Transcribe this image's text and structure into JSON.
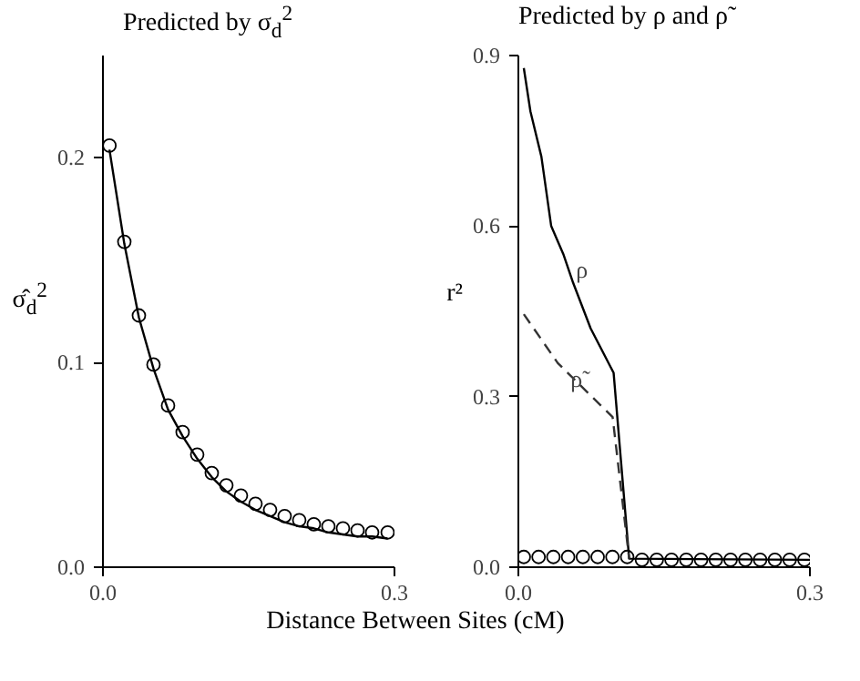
{
  "chart_data": [
    {
      "type": "line",
      "title": "Predicted by σ$_{d}$$^{2}$",
      "xlabel": "Distance Between Sites (cM)",
      "ylabel": "σ̂$_{d}$$^{2}$",
      "xlim": [
        0,
        0.3
      ],
      "ylim": [
        0,
        0.25
      ],
      "xticks": [
        {
          "value": 0,
          "label": "0.0"
        },
        0.3
      ],
      "yticks": [
        {
          "value": 0,
          "label": "0.0"
        },
        0.1,
        0.2
      ],
      "grid": false,
      "series": [
        {
          "color": "#000000",
          "line_style": "solid",
          "x": [
            0.0067,
            0.022,
            0.037,
            0.052,
            0.067,
            0.082,
            0.097,
            0.112,
            0.127,
            0.142,
            0.157,
            0.172,
            0.187,
            0.202,
            0.217,
            0.232,
            0.247,
            0.262,
            0.277,
            0.293
          ],
          "values": [
            0.204,
            0.158,
            0.122,
            0.097,
            0.077,
            0.064,
            0.053,
            0.044,
            0.037,
            0.032,
            0.028,
            0.025,
            0.022,
            0.02,
            0.019,
            0.017,
            0.016,
            0.015,
            0.015,
            0.014
          ]
        },
        {
          "type": "scatter",
          "color": "#000000",
          "marker": "circle",
          "x": [
            0.0067,
            0.022,
            0.037,
            0.052,
            0.067,
            0.082,
            0.097,
            0.112,
            0.127,
            0.142,
            0.157,
            0.172,
            0.187,
            0.202,
            0.217,
            0.232,
            0.247,
            0.262,
            0.277,
            0.293
          ],
          "values": [
            0.206,
            0.159,
            0.123,
            0.099,
            0.079,
            0.066,
            0.055,
            0.046,
            0.04,
            0.035,
            0.031,
            0.028,
            0.025,
            0.023,
            0.021,
            0.02,
            0.019,
            0.018,
            0.017,
            0.017
          ]
        }
      ]
    },
    {
      "type": "line",
      "title": "Predicted by ρ and ρ̃",
      "ylabel": "r²",
      "xlim": [
        0,
        0.3
      ],
      "ylim": [
        0,
        0.9
      ],
      "xticks": [
        {
          "value": 0,
          "label": "0.0"
        },
        0.3
      ],
      "yticks": [
        {
          "value": 0,
          "label": "0.0"
        },
        0.3,
        0.6,
        0.9
      ],
      "grid": false,
      "series": [
        {
          "name": "ρ",
          "color": "#000000",
          "line_style": "solid",
          "x": [
            0.0056,
            0.0124,
            0.0237,
            0.0338,
            0.0462,
            0.0564,
            0.0744,
            0.098,
            0.114,
            0.3
          ],
          "values": [
            0.878,
            0.802,
            0.722,
            0.6,
            0.551,
            0.5,
            0.42,
            0.342,
            0.015,
            0.013
          ]
        },
        {
          "name": "ρ̃",
          "color": "#333333",
          "line_style": "dashed",
          "x": [
            0.0056,
            0.0406,
            0.097,
            0.114
          ],
          "values": [
            0.445,
            0.359,
            0.264,
            0.015
          ]
        },
        {
          "type": "scatter",
          "color": "#000000",
          "marker": "circle",
          "x": [
            0.0056,
            0.0208,
            0.036,
            0.0512,
            0.0664,
            0.0816,
            0.0968,
            0.112,
            0.1272,
            0.1424,
            0.1576,
            0.1728,
            0.188,
            0.2032,
            0.2184,
            0.2336,
            0.2488,
            0.264,
            0.2792,
            0.2944
          ],
          "values": [
            0.018,
            0.018,
            0.018,
            0.018,
            0.018,
            0.018,
            0.018,
            0.018,
            0.013,
            0.013,
            0.013,
            0.013,
            0.013,
            0.013,
            0.013,
            0.013,
            0.013,
            0.013,
            0.013,
            0.013
          ]
        }
      ]
    }
  ]
}
